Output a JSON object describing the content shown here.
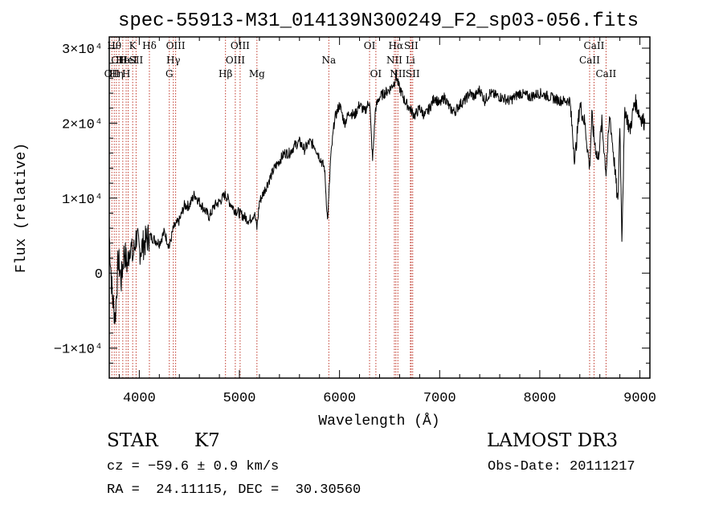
{
  "chart_data": {
    "type": "line",
    "title": "spec-55913-M31_014139N300249_F2_sp03-056.fits",
    "xlabel": "Wavelength (Å)",
    "ylabel": "Flux (relative)",
    "xlim": [
      3700,
      9100
    ],
    "ylim": [
      -14000,
      31500
    ],
    "x_ticks": [
      4000,
      5000,
      6000,
      7000,
      8000,
      9000
    ],
    "y_ticks": [
      {
        "value": -10000,
        "label": "−1×10⁴"
      },
      {
        "value": 0,
        "label": "0"
      },
      {
        "value": 10000,
        "label": "1×10⁴"
      },
      {
        "value": 20000,
        "label": "2×10⁴"
      },
      {
        "value": 30000,
        "label": "3×10⁴"
      }
    ],
    "series": [
      {
        "name": "flux",
        "x": [
          3700,
          3730,
          3760,
          3790,
          3820,
          3850,
          3880,
          3910,
          3935,
          3970,
          4000,
          4050,
          4100,
          4150,
          4200,
          4250,
          4300,
          4340,
          4400,
          4450,
          4500,
          4550,
          4600,
          4650,
          4700,
          4750,
          4800,
          4861,
          4900,
          4950,
          5000,
          5050,
          5100,
          5150,
          5175,
          5200,
          5250,
          5300,
          5350,
          5400,
          5450,
          5500,
          5550,
          5600,
          5650,
          5700,
          5750,
          5800,
          5850,
          5880,
          5893,
          5910,
          5950,
          6000,
          6050,
          6100,
          6150,
          6200,
          6250,
          6300,
          6330,
          6360,
          6400,
          6450,
          6500,
          6550,
          6563,
          6590,
          6620,
          6650,
          6700,
          6750,
          6800,
          6850,
          6900,
          6950,
          7000,
          7050,
          7100,
          7150,
          7200,
          7250,
          7300,
          7350,
          7400,
          7450,
          7500,
          7600,
          7700,
          7800,
          7900,
          8000,
          8100,
          8200,
          8300,
          8350,
          8400,
          8450,
          8498,
          8520,
          8542,
          8580,
          8620,
          8662,
          8700,
          8750,
          8780,
          8800,
          8820,
          8850,
          8900,
          8950,
          9000,
          9050
        ],
        "values": [
          5000,
          -3000,
          -6000,
          2000,
          -1000,
          3000,
          1000,
          4000,
          2000,
          5000,
          3000,
          4000,
          5000,
          4500,
          4000,
          5500,
          3500,
          6000,
          7000,
          9000,
          9000,
          10500,
          9500,
          8500,
          7500,
          9000,
          9500,
          10500,
          9500,
          8500,
          8000,
          7500,
          7000,
          8000,
          6000,
          9500,
          11000,
          12500,
          14000,
          15000,
          16000,
          16000,
          17000,
          17500,
          16500,
          17500,
          17000,
          15500,
          14000,
          7000,
          10000,
          15000,
          20500,
          22500,
          20000,
          21500,
          21000,
          22500,
          21500,
          23000,
          15000,
          22000,
          23500,
          24000,
          24500,
          25500,
          26500,
          25000,
          24000,
          23000,
          22000,
          21000,
          22000,
          21000,
          22000,
          23500,
          22500,
          23500,
          22000,
          21500,
          22500,
          23000,
          24000,
          23500,
          24500,
          23000,
          24000,
          23500,
          23000,
          24000,
          23500,
          24000,
          23500,
          23000,
          23000,
          15000,
          22500,
          20000,
          14000,
          21000,
          18000,
          15000,
          20000,
          13500,
          21000,
          14000,
          9000,
          20000,
          5000,
          22000,
          19000,
          23000,
          21000,
          20000
        ]
      }
    ],
    "lines": [
      {
        "wave": 3726,
        "row": 2,
        "label": "OII"
      },
      {
        "wave": 3750,
        "row": 0,
        "label": "Hθ"
      },
      {
        "wave": 3771,
        "row": 2,
        "label": "Hη"
      },
      {
        "wave": 3797,
        "row": 1,
        "label": "CH"
      },
      {
        "wave": 3835,
        "row": 1,
        "label": "He"
      },
      {
        "wave": 3869,
        "row": 2,
        "label": "H"
      },
      {
        "wave": 3889,
        "row": 1,
        "label": "HeI"
      },
      {
        "wave": 3934,
        "row": 0,
        "label": "K"
      },
      {
        "wave": 3968,
        "row": 1,
        "label": "SII"
      },
      {
        "wave": 4101,
        "row": 0,
        "label": "Hδ"
      },
      {
        "wave": 4300,
        "row": 2,
        "label": "G"
      },
      {
        "wave": 4340,
        "row": 1,
        "label": "Hγ"
      },
      {
        "wave": 4363,
        "row": 0,
        "label": "OIII"
      },
      {
        "wave": 4861,
        "row": 2,
        "label": "Hβ"
      },
      {
        "wave": 4959,
        "row": 1,
        "label": "OIII"
      },
      {
        "wave": 5007,
        "row": 0,
        "label": "OIII"
      },
      {
        "wave": 5175,
        "row": 2,
        "label": "Mg"
      },
      {
        "wave": 5893,
        "row": 1,
        "label": "Na"
      },
      {
        "wave": 6300,
        "row": 0,
        "label": "OI"
      },
      {
        "wave": 6363,
        "row": 2,
        "label": "OI"
      },
      {
        "wave": 6548,
        "row": 1,
        "label": "NII"
      },
      {
        "wave": 6563,
        "row": 0,
        "label": "Hα"
      },
      {
        "wave": 6583,
        "row": 2,
        "label": "NII"
      },
      {
        "wave": 6716,
        "row": 0,
        "label": "SII"
      },
      {
        "wave": 6708,
        "row": 1,
        "label": "Li"
      },
      {
        "wave": 6731,
        "row": 2,
        "label": "SII"
      },
      {
        "wave": 8498,
        "row": 1,
        "label": "CaII"
      },
      {
        "wave": 8542,
        "row": 0,
        "label": "CaII"
      },
      {
        "wave": 8662,
        "row": 2,
        "label": "CaII"
      }
    ]
  },
  "info": {
    "star_type": "STAR",
    "star_class": "K7",
    "survey": "LAMOST DR3",
    "cz": "cz = −59.6 ± 0.9 km/s",
    "obs_date": "Obs-Date: 20111217",
    "radec": "RA =  24.11115, DEC =  30.30560"
  }
}
